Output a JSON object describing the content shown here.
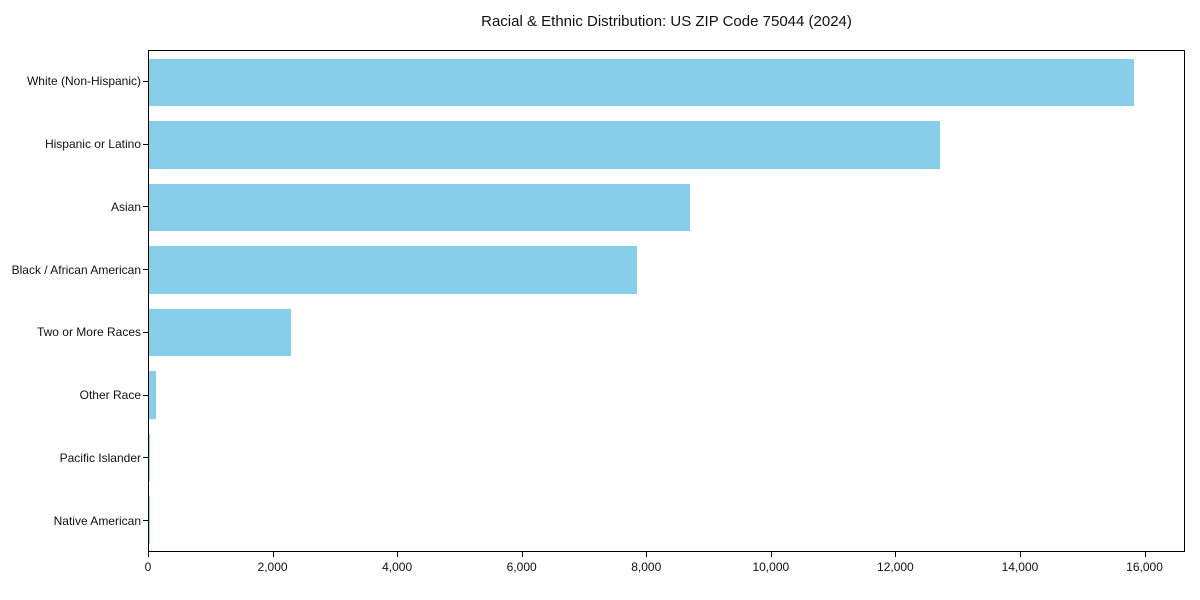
{
  "chart_data": {
    "type": "bar",
    "orientation": "horizontal",
    "title": "Racial & Ethnic Distribution: US ZIP Code 75044 (2024)",
    "categories": [
      "White (Non-Hispanic)",
      "Hispanic or Latino",
      "Asian",
      "Black / African American",
      "Two or More Races",
      "Other Race",
      "Pacific Islander",
      "Native American"
    ],
    "values": [
      15850,
      12720,
      8710,
      7850,
      2290,
      120,
      20,
      15
    ],
    "xlabel": "",
    "ylabel": "",
    "xlim": [
      0,
      16650
    ],
    "x_ticks": [
      0,
      2000,
      4000,
      6000,
      8000,
      10000,
      12000,
      14000,
      16000
    ],
    "x_tick_labels": [
      "0",
      "2,000",
      "4,000",
      "6,000",
      "8,000",
      "10,000",
      "12,000",
      "14,000",
      "16,000"
    ],
    "bar_color": "#87CEEB",
    "grid": false,
    "legend": "none",
    "frame": "full-box"
  }
}
